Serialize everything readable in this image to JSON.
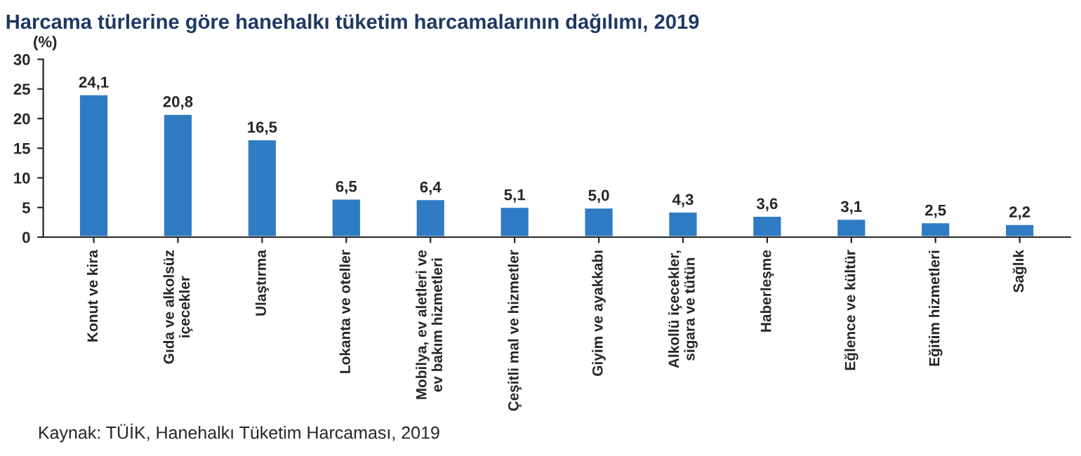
{
  "chart_data": {
    "type": "bar",
    "title": "Harcama türlerine göre hanehalkı tüketim harcamalarının dağılımı, 2019",
    "ylabel": "(%)",
    "categories": [
      "Konut ve kira",
      "Gıda ve alkolsüz\niçecekler",
      "Ulaştırma",
      "Lokanta ve oteller",
      "Mobilya, ev aletleri ve\nev bakım hizmetleri",
      "Çeşitli mal ve hizmetler",
      "Giyim ve ayakkabı",
      "Alkollü içecekler,\nsigara ve tütün",
      "Haberleşme",
      "Eğlence ve kültür",
      "Eğitim hizmetleri",
      "Sağlık"
    ],
    "values": [
      24.1,
      20.8,
      16.5,
      6.5,
      6.4,
      5.1,
      5.0,
      4.3,
      3.6,
      3.1,
      2.5,
      2.2
    ],
    "value_labels": [
      "24,1",
      "20,8",
      "16,5",
      "6,5",
      "6,4",
      "5,1",
      "5,0",
      "4,3",
      "3,6",
      "3,1",
      "2,5",
      "2,2"
    ],
    "color": "#2f7bc4",
    "ylim": [
      0,
      30
    ],
    "yticks": [
      0,
      5,
      10,
      15,
      20,
      25,
      30
    ],
    "annotations": [
      "Kaynak: TÜİK, Hanehalkı Tüketim Harcaması, 2019"
    ]
  }
}
